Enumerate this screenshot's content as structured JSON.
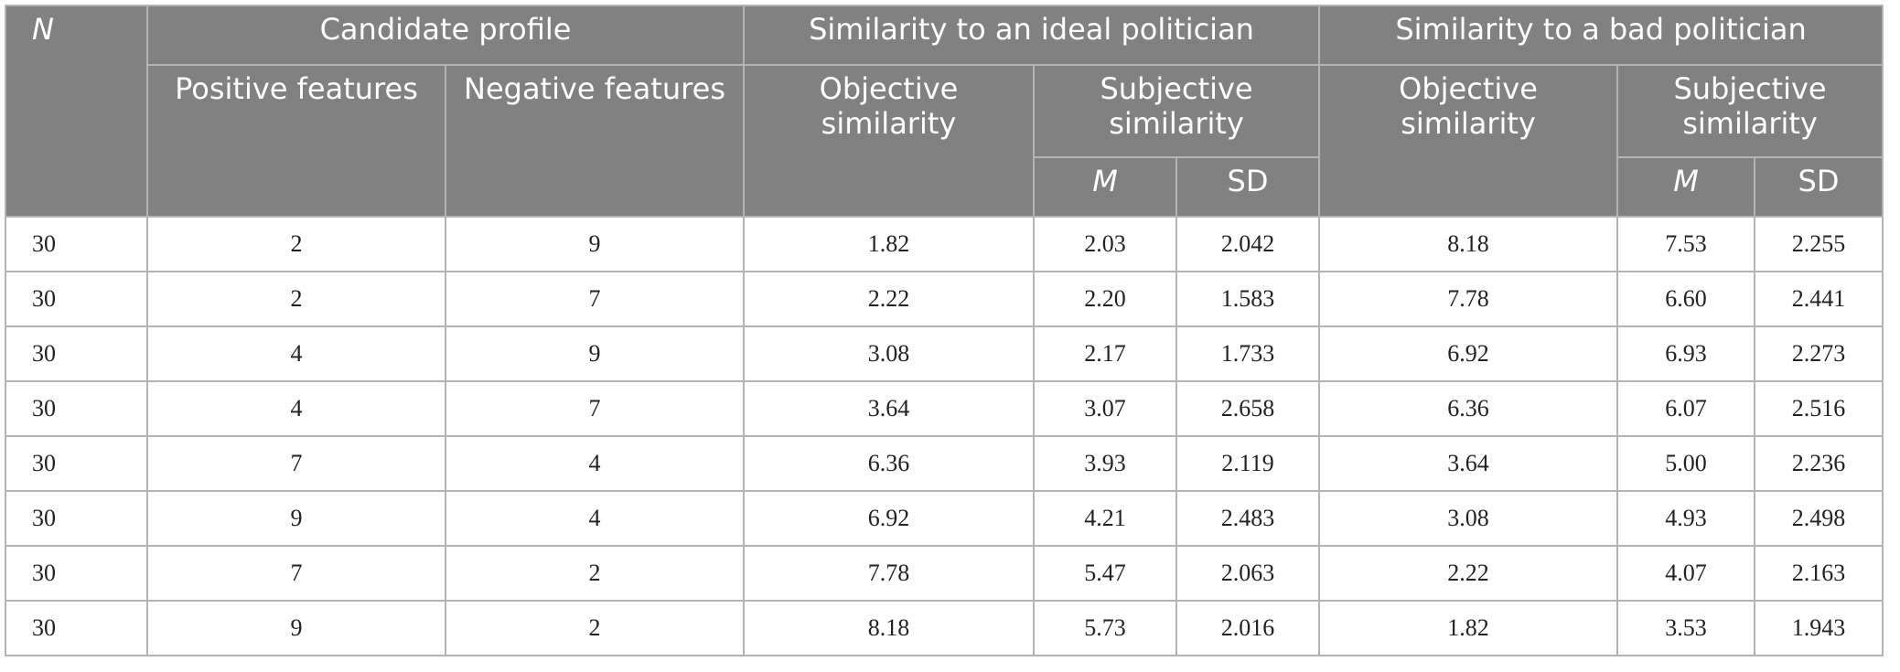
{
  "header": {
    "n_label": "N",
    "candidate_profile": "Candidate profile",
    "ideal_group": "Similarity to an ideal politician",
    "bad_group": "Similarity to a bad politician",
    "positive_features": "Positive features",
    "negative_features": "Negative features",
    "ideal_objective": "Objective similarity",
    "ideal_subjective": "Subjective similarity",
    "bad_objective": "Objective similarity",
    "bad_subjective": "Subjective similarity",
    "ideal_m": "M",
    "ideal_sd": "SD",
    "bad_m": "M",
    "bad_sd": "SD"
  },
  "rows": [
    [
      "30",
      "2",
      "9",
      "1.82",
      "2.03",
      "2.042",
      "8.18",
      "7.53",
      "2.255"
    ],
    [
      "30",
      "2",
      "7",
      "2.22",
      "2.20",
      "1.583",
      "7.78",
      "6.60",
      "2.441"
    ],
    [
      "30",
      "4",
      "9",
      "3.08",
      "2.17",
      "1.733",
      "6.92",
      "6.93",
      "2.273"
    ],
    [
      "30",
      "4",
      "7",
      "3.64",
      "3.07",
      "2.658",
      "6.36",
      "6.07",
      "2.516"
    ],
    [
      "30",
      "7",
      "4",
      "6.36",
      "3.93",
      "2.119",
      "3.64",
      "5.00",
      "2.236"
    ],
    [
      "30",
      "9",
      "4",
      "6.92",
      "4.21",
      "2.483",
      "3.08",
      "4.93",
      "2.498"
    ],
    [
      "30",
      "7",
      "2",
      "7.78",
      "5.47",
      "2.063",
      "2.22",
      "4.07",
      "2.163"
    ],
    [
      "30",
      "9",
      "2",
      "8.18",
      "5.73",
      "2.016",
      "1.82",
      "3.53",
      "1.943"
    ]
  ]
}
